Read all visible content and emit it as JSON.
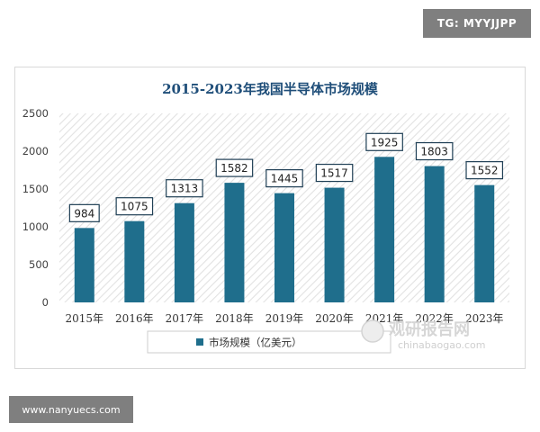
{
  "tag": "TG: MYYJJPP",
  "website": "www.nanyuecs.com",
  "watermark": {
    "cn": "观研报告网",
    "en": "chinabaogao.com"
  },
  "colors": {
    "bar": "#1f6e8c",
    "hatch": "#e4e4e4",
    "axis_text": "#404040"
  },
  "chart_data": {
    "type": "bar",
    "title": "2015-2023年我国半导体市场规模",
    "categories": [
      "2015年",
      "2016年",
      "2017年",
      "2018年",
      "2019年",
      "2020年",
      "2021年",
      "2022年",
      "2023年"
    ],
    "series": [
      {
        "name": "市场规模（亿美元）",
        "values": [
          984,
          1075,
          1313,
          1582,
          1445,
          1517,
          1925,
          1803,
          1552
        ]
      }
    ],
    "ylim": [
      0,
      2500
    ],
    "yticks": [
      0,
      500,
      1000,
      1500,
      2000,
      2500
    ],
    "data_labels": true,
    "grid": false,
    "legend": "bottom",
    "xlabel": "",
    "ylabel": ""
  }
}
